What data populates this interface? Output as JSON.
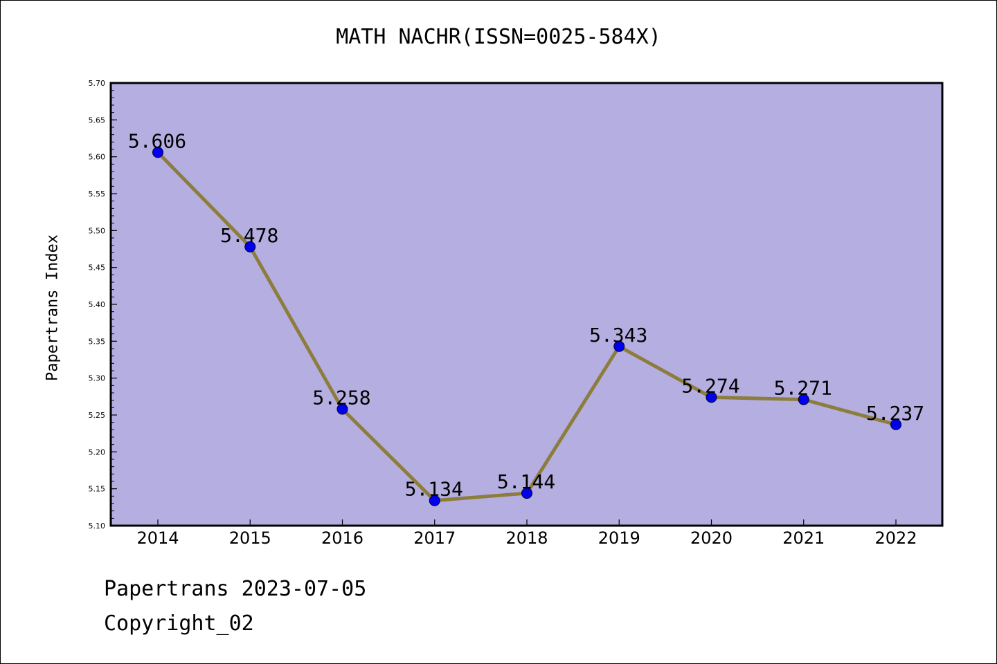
{
  "chart_data": {
    "type": "line",
    "title": "MATH NACHR(ISSN=0025-584X)",
    "xlabel": "",
    "ylabel": "Papertrans Index",
    "categories": [
      "2014",
      "2015",
      "2016",
      "2017",
      "2018",
      "2019",
      "2020",
      "2021",
      "2022"
    ],
    "series": [
      {
        "values": [
          5.606,
          5.478,
          5.258,
          5.134,
          5.144,
          5.343,
          5.274,
          5.271,
          5.237
        ]
      }
    ],
    "data_labels": [
      "5.606",
      "5.478",
      "5.258",
      "5.134",
      "5.144",
      "5.343",
      "5.274",
      "5.271",
      "5.237"
    ],
    "ylim": [
      5.1,
      5.7
    ],
    "yticks": [
      "5.10",
      "5.15",
      "5.20",
      "5.25",
      "5.30",
      "5.35",
      "5.40",
      "5.45",
      "5.50",
      "5.55",
      "5.60",
      "5.65",
      "5.70"
    ],
    "grid": false,
    "legend": "none",
    "colors": {
      "plot_background": "#b4aee1",
      "line": "#8c7d3c",
      "marker": "#0000ee"
    }
  },
  "footer": {
    "line1": "Papertrans 2023-07-05",
    "line2": "Copyright_02"
  }
}
